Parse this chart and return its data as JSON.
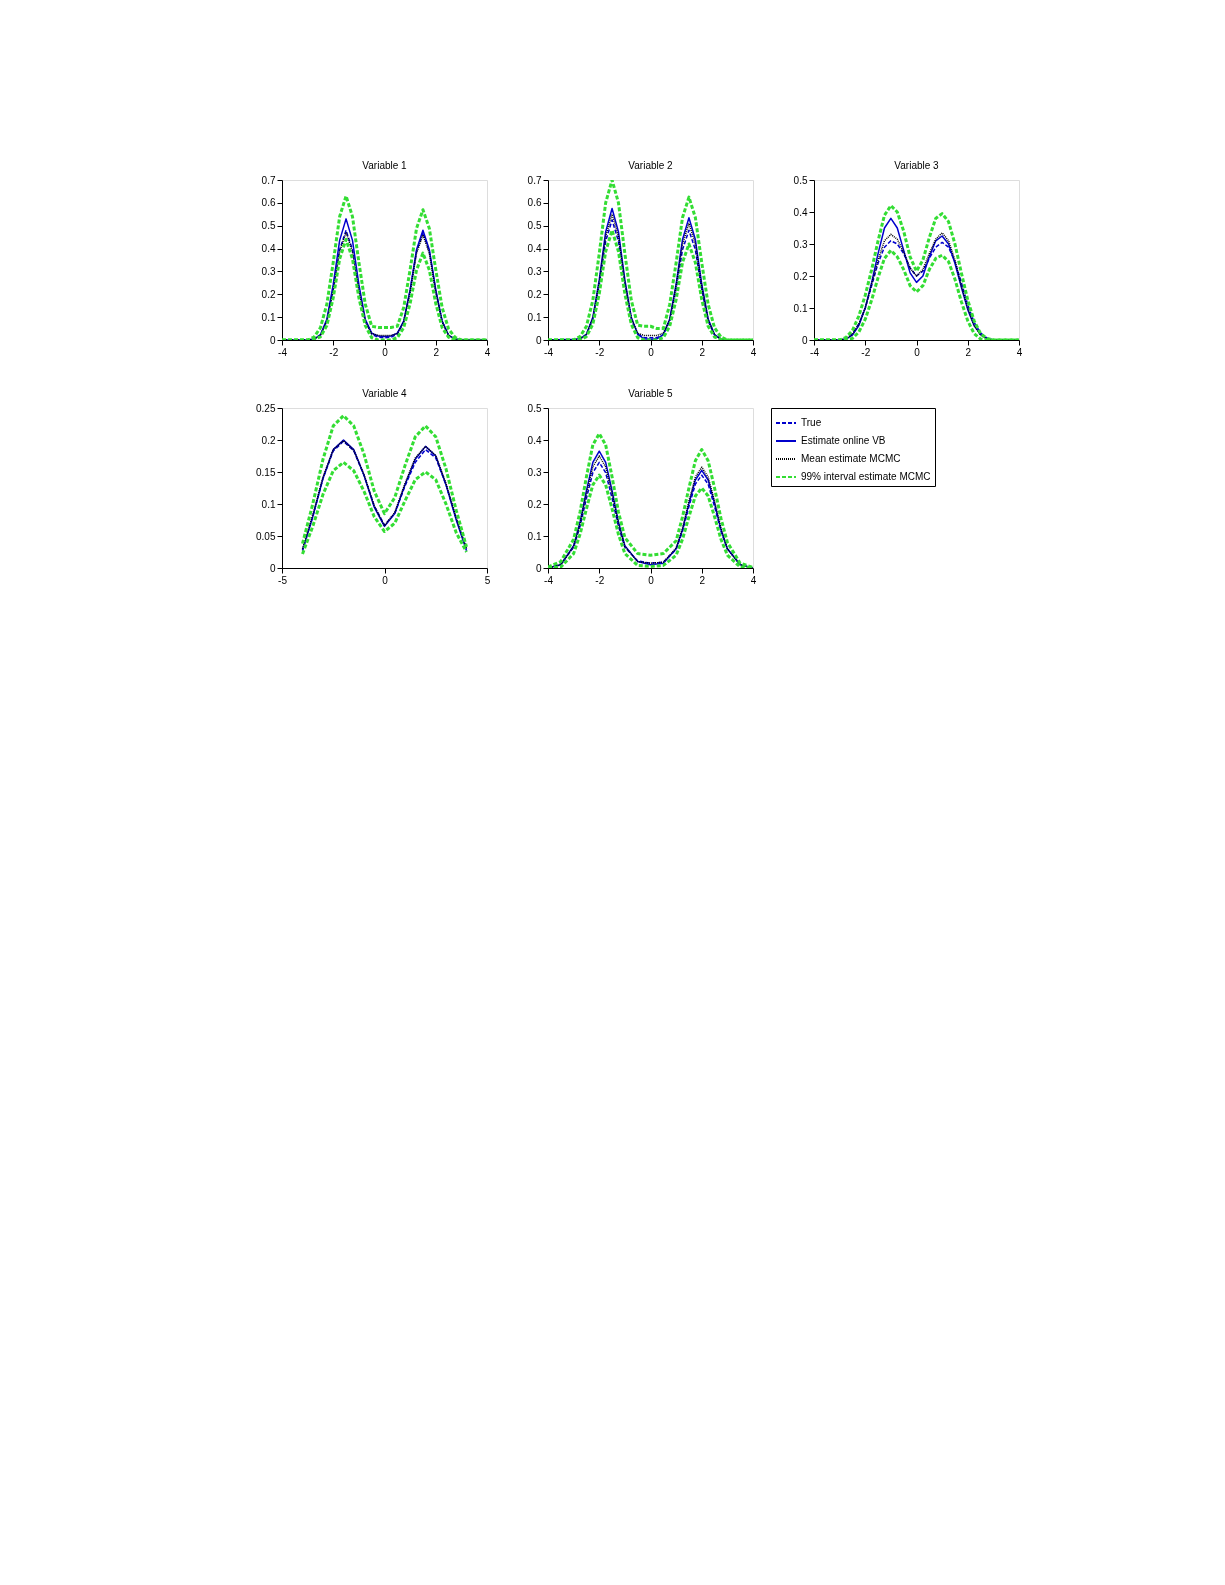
{
  "chart_data": [
    {
      "type": "line",
      "title": "Variable 1",
      "xlim": [
        -4,
        4
      ],
      "xticks": [
        -4,
        -2,
        0,
        2,
        4
      ],
      "ylim": [
        0,
        0.7
      ],
      "yticks": [
        0,
        0.1,
        0.2,
        0.3,
        0.4,
        0.5,
        0.6,
        0.7
      ],
      "grid": false,
      "legend": false,
      "x": [
        -4,
        -3,
        -2.75,
        -2.5,
        -2.25,
        -2,
        -1.75,
        -1.5,
        -1.25,
        -1,
        -0.75,
        -0.5,
        -0.25,
        0,
        0.25,
        0.5,
        0.75,
        1,
        1.25,
        1.5,
        1.75,
        2,
        2.25,
        2.5,
        2.75,
        3,
        4
      ],
      "series": [
        {
          "color": "#0000cc",
          "line_style": "dashed",
          "values": [
            0,
            0,
            0.004,
            0.021,
            0.083,
            0.22,
            0.395,
            0.48,
            0.395,
            0.22,
            0.083,
            0.025,
            0.012,
            0.01,
            0.012,
            0.025,
            0.081,
            0.215,
            0.387,
            0.47,
            0.387,
            0.215,
            0.081,
            0.02,
            0.004,
            0,
            0
          ]
        },
        {
          "color": "#0000cc",
          "line_style": "solid",
          "values": [
            0,
            0,
            0.004,
            0.023,
            0.091,
            0.243,
            0.436,
            0.53,
            0.436,
            0.243,
            0.091,
            0.03,
            0.018,
            0.015,
            0.018,
            0.03,
            0.083,
            0.22,
            0.395,
            0.48,
            0.395,
            0.22,
            0.083,
            0.021,
            0.004,
            0,
            0
          ]
        },
        {
          "color": "#000000",
          "line_style": "dotted",
          "values": [
            0,
            0,
            0.004,
            0.02,
            0.081,
            0.215,
            0.387,
            0.47,
            0.387,
            0.215,
            0.081,
            0.028,
            0.02,
            0.02,
            0.02,
            0.028,
            0.079,
            0.21,
            0.379,
            0.46,
            0.379,
            0.21,
            0.079,
            0.02,
            0.004,
            0,
            0
          ]
        },
        {
          "color": "#33dd33",
          "line_style": "dashed",
          "values": [
            0,
            0,
            0.013,
            0.054,
            0.157,
            0.34,
            0.54,
            0.63,
            0.54,
            0.34,
            0.157,
            0.06,
            0.055,
            0.055,
            0.055,
            0.06,
            0.142,
            0.308,
            0.488,
            0.57,
            0.488,
            0.308,
            0.142,
            0.048,
            0.012,
            0,
            0
          ]
        },
        {
          "color": "#33dd33",
          "line_style": "dashed",
          "values": [
            0,
            0,
            0.002,
            0.014,
            0.063,
            0.185,
            0.355,
            0.44,
            0.355,
            0.185,
            0.063,
            0.01,
            0,
            0,
            0,
            0.01,
            0.054,
            0.16,
            0.306,
            0.38,
            0.306,
            0.16,
            0.054,
            0.012,
            0.002,
            0,
            0
          ]
        }
      ]
    },
    {
      "type": "line",
      "title": "Variable 2",
      "xlim": [
        -4,
        4
      ],
      "xticks": [
        -4,
        -2,
        0,
        2,
        4
      ],
      "ylim": [
        0,
        0.7
      ],
      "yticks": [
        0,
        0.1,
        0.2,
        0.3,
        0.4,
        0.5,
        0.6,
        0.7
      ],
      "grid": false,
      "legend": false,
      "x": [
        -4,
        -3,
        -2.75,
        -2.5,
        -2.25,
        -2,
        -1.75,
        -1.5,
        -1.25,
        -1,
        -0.75,
        -0.5,
        -0.25,
        0,
        0.25,
        0.5,
        0.75,
        1,
        1.25,
        1.5,
        1.75,
        2,
        2.25,
        2.5,
        2.75,
        3,
        4
      ],
      "series": [
        {
          "color": "#0000cc",
          "line_style": "dashed",
          "values": [
            0,
            0,
            0.004,
            0.023,
            0.09,
            0.24,
            0.432,
            0.525,
            0.432,
            0.24,
            0.09,
            0.025,
            0.01,
            0.01,
            0.01,
            0.023,
            0.083,
            0.22,
            0.395,
            0.48,
            0.395,
            0.22,
            0.083,
            0.021,
            0.004,
            0,
            0
          ]
        },
        {
          "color": "#0000cc",
          "line_style": "solid",
          "values": [
            0,
            0.003,
            0.006,
            0.025,
            0.099,
            0.263,
            0.473,
            0.575,
            0.473,
            0.263,
            0.099,
            0.025,
            0.005,
            0.003,
            0.005,
            0.024,
            0.092,
            0.245,
            0.44,
            0.535,
            0.44,
            0.245,
            0.092,
            0.024,
            0.004,
            null,
            null
          ]
        },
        {
          "color": "#000000",
          "line_style": "dotted",
          "values": [
            0,
            0,
            0.004,
            0.024,
            0.095,
            0.252,
            0.453,
            0.55,
            0.453,
            0.252,
            0.095,
            0.03,
            0.02,
            0.02,
            0.02,
            0.03,
            0.088,
            0.234,
            0.42,
            0.51,
            0.42,
            0.234,
            0.088,
            0.022,
            0.004,
            0,
            0
          ]
        },
        {
          "color": "#33dd33",
          "line_style": "dashed",
          "values": [
            0,
            0,
            0.015,
            0.06,
            0.174,
            0.378,
            0.6,
            0.7,
            0.6,
            0.378,
            0.174,
            0.065,
            0.06,
            0.06,
            0.05,
            0.05,
            0.156,
            0.338,
            0.536,
            0.625,
            0.536,
            0.338,
            0.156,
            0.053,
            0.013,
            0,
            0
          ]
        },
        {
          "color": "#33dd33",
          "line_style": "dashed",
          "values": [
            0,
            0,
            0,
            0.015,
            0.069,
            0.202,
            0.387,
            0.48,
            0.387,
            0.202,
            0.069,
            0.01,
            0,
            0,
            0,
            0.01,
            0.06,
            0.177,
            0.339,
            0.42,
            0.339,
            0.177,
            0.06,
            0.013,
            0.002,
            0,
            0
          ]
        }
      ]
    },
    {
      "type": "line",
      "title": "Variable 3",
      "xlim": [
        -4,
        4
      ],
      "xticks": [
        -4,
        -2,
        0,
        2,
        4
      ],
      "ylim": [
        0,
        0.5
      ],
      "yticks": [
        0,
        0.1,
        0.2,
        0.3,
        0.4,
        0.5
      ],
      "grid": false,
      "legend": false,
      "x": [
        -4,
        -3,
        -2.75,
        -2.5,
        -2.25,
        -2,
        -1.75,
        -1.5,
        -1.25,
        -1,
        -0.75,
        -0.5,
        -0.25,
        0,
        0.25,
        0.5,
        0.75,
        1,
        1.25,
        1.5,
        1.75,
        2,
        2.25,
        2.5,
        2.75,
        3,
        4
      ],
      "series": [
        {
          "color": "#0000cc",
          "line_style": "dashed",
          "values": [
            0,
            0,
            0.005,
            0.02,
            0.05,
            0.1,
            0.17,
            0.24,
            0.29,
            0.31,
            0.3,
            0.27,
            0.225,
            0.2,
            0.215,
            0.255,
            0.29,
            0.305,
            0.29,
            0.245,
            0.18,
            0.11,
            0.055,
            0.022,
            0.006,
            0,
            0
          ]
        },
        {
          "color": "#0000cc",
          "line_style": "solid",
          "values": [
            0,
            0,
            0.003,
            0.015,
            0.045,
            0.1,
            0.18,
            0.27,
            0.35,
            0.38,
            0.35,
            0.28,
            0.21,
            0.18,
            0.2,
            0.26,
            0.31,
            0.325,
            0.3,
            0.24,
            0.165,
            0.095,
            0.045,
            0.017,
            0.004,
            0,
            0
          ]
        },
        {
          "color": "#000000",
          "line_style": "dotted",
          "values": [
            0,
            0,
            0.004,
            0.018,
            0.05,
            0.1,
            0.175,
            0.25,
            0.31,
            0.33,
            0.315,
            0.275,
            0.225,
            0.2,
            0.22,
            0.27,
            0.315,
            0.335,
            0.31,
            0.25,
            0.17,
            0.1,
            0.045,
            0.015,
            0.003,
            0,
            0
          ]
        },
        {
          "color": "#33dd33",
          "line_style": "dashed",
          "values": [
            0,
            0,
            0.008,
            0.03,
            0.075,
            0.14,
            0.22,
            0.31,
            0.39,
            0.42,
            0.4,
            0.34,
            0.26,
            0.215,
            0.25,
            0.32,
            0.38,
            0.395,
            0.37,
            0.3,
            0.21,
            0.125,
            0.06,
            0.02,
            0.005,
            0,
            0
          ]
        },
        {
          "color": "#33dd33",
          "line_style": "dashed",
          "values": [
            0,
            0,
            0,
            0.005,
            0.025,
            0.065,
            0.125,
            0.195,
            0.255,
            0.28,
            0.26,
            0.22,
            0.17,
            0.15,
            0.17,
            0.22,
            0.255,
            0.265,
            0.245,
            0.19,
            0.12,
            0.06,
            0.02,
            0.003,
            0,
            0,
            0
          ]
        }
      ]
    },
    {
      "type": "line",
      "title": "Variable 4",
      "xlim": [
        -5,
        5
      ],
      "xticks": [
        -5,
        0,
        5
      ],
      "ylim": [
        0,
        0.25
      ],
      "yticks": [
        0,
        0.05,
        0.1,
        0.15,
        0.2,
        0.25
      ],
      "grid": false,
      "legend": false,
      "x": [
        -4,
        -3.5,
        -3,
        -2.5,
        -2,
        -1.5,
        -1,
        -0.5,
        0,
        0.5,
        1,
        1.5,
        2,
        2.5,
        3,
        3.5,
        4
      ],
      "series": [
        {
          "color": "#0000cc",
          "line_style": "dashed",
          "values": [
            0.028,
            0.08,
            0.14,
            0.183,
            0.198,
            0.183,
            0.145,
            0.097,
            0.067,
            0.085,
            0.128,
            0.165,
            0.185,
            0.172,
            0.13,
            0.077,
            0.03
          ]
        },
        {
          "color": "#0000cc",
          "line_style": "solid",
          "values": [
            0.027,
            0.08,
            0.14,
            0.185,
            0.2,
            0.185,
            0.145,
            0.095,
            0.065,
            0.085,
            0.13,
            0.17,
            0.19,
            0.175,
            0.13,
            0.075,
            0.027
          ]
        },
        {
          "color": "#000000",
          "line_style": "dotted",
          "values": [
            0.03,
            0.083,
            0.142,
            0.185,
            0.199,
            0.184,
            0.146,
            0.097,
            0.066,
            0.087,
            0.132,
            0.172,
            0.19,
            0.176,
            0.132,
            0.078,
            0.03
          ]
        },
        {
          "color": "#33dd33",
          "line_style": "dashed",
          "values": [
            0.038,
            0.1,
            0.17,
            0.222,
            0.238,
            0.222,
            0.178,
            0.12,
            0.085,
            0.11,
            0.16,
            0.205,
            0.222,
            0.205,
            0.155,
            0.09,
            0.033
          ]
        },
        {
          "color": "#33dd33",
          "line_style": "dashed",
          "values": [
            0.022,
            0.065,
            0.115,
            0.152,
            0.165,
            0.152,
            0.12,
            0.08,
            0.057,
            0.07,
            0.105,
            0.138,
            0.15,
            0.138,
            0.1,
            0.055,
            0.025
          ]
        }
      ]
    },
    {
      "type": "line",
      "title": "Variable 5",
      "xlim": [
        -4,
        4
      ],
      "xticks": [
        -4,
        -2,
        0,
        2,
        4
      ],
      "ylim": [
        0,
        0.5
      ],
      "yticks": [
        0,
        0.1,
        0.2,
        0.3,
        0.4,
        0.5
      ],
      "grid": false,
      "legend": "right",
      "x": [
        -4,
        -3.5,
        -3,
        -2.75,
        -2.5,
        -2.25,
        -2,
        -1.75,
        -1.5,
        -1.25,
        -1,
        -0.5,
        0,
        0.5,
        1,
        1.25,
        1.5,
        1.75,
        2,
        2.25,
        2.5,
        2.75,
        3,
        3.5,
        4
      ],
      "series": [
        {
          "name": "True",
          "color": "#0000cc",
          "line_style": "dashed",
          "values": [
            0,
            0.012,
            0.065,
            0.13,
            0.218,
            0.298,
            0.33,
            0.298,
            0.218,
            0.13,
            0.065,
            0.022,
            0.015,
            0.018,
            0.058,
            0.115,
            0.192,
            0.262,
            0.29,
            0.262,
            0.192,
            0.115,
            0.06,
            0.012,
            0
          ]
        },
        {
          "name": "Estimate online VB",
          "color": "#0000cc",
          "line_style": "solid",
          "values": [
            0,
            0.01,
            0.07,
            0.144,
            0.242,
            0.33,
            0.365,
            0.33,
            0.242,
            0.144,
            0.07,
            0.02,
            0.01,
            0.015,
            0.06,
            0.12,
            0.202,
            0.275,
            0.305,
            0.275,
            0.202,
            0.12,
            0.06,
            0.01,
            0
          ]
        },
        {
          "name": "Mean estimate MCMC",
          "color": "#000000",
          "line_style": "dotted",
          "values": [
            0,
            0.01,
            0.067,
            0.138,
            0.232,
            0.316,
            0.35,
            0.316,
            0.232,
            0.138,
            0.067,
            0.02,
            0.015,
            0.018,
            0.062,
            0.124,
            0.209,
            0.284,
            0.315,
            0.284,
            0.209,
            0.124,
            0.06,
            0.01,
            0
          ]
        },
        {
          "name": "99% interval estimate MCMC",
          "color": "#33dd33",
          "line_style": "dashed",
          "values": [
            0.003,
            0.02,
            0.09,
            0.175,
            0.285,
            0.385,
            0.42,
            0.385,
            0.285,
            0.175,
            0.095,
            0.045,
            0.04,
            0.045,
            0.085,
            0.16,
            0.25,
            0.335,
            0.37,
            0.335,
            0.25,
            0.155,
            0.08,
            0.015,
            0.002
          ]
        },
        {
          "color": "#33dd33",
          "line_style": "dashed",
          "values": [
            0,
            0.003,
            0.045,
            0.105,
            0.185,
            0.26,
            0.29,
            0.26,
            0.185,
            0.105,
            0.045,
            0.008,
            0.005,
            0.008,
            0.04,
            0.09,
            0.16,
            0.225,
            0.25,
            0.225,
            0.16,
            0.09,
            0.04,
            0.003,
            0
          ]
        }
      ]
    }
  ]
}
